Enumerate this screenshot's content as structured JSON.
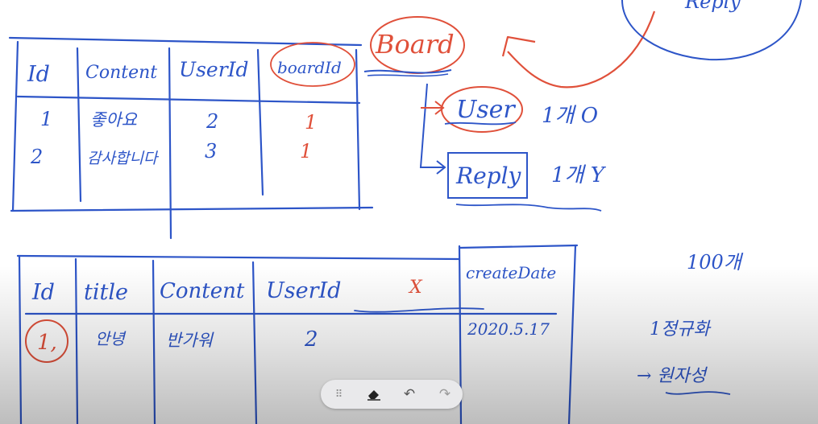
{
  "colors": {
    "ink_blue": "#2d55c8",
    "ink_red": "#e0503a",
    "toolbar_bg": "#e9e9eb"
  },
  "top_cut_label": "Reply",
  "reply_table": {
    "headers": [
      "Id",
      "Content",
      "UserId",
      "boardId"
    ],
    "rows": [
      [
        "1",
        "좋아요",
        "2",
        "1"
      ],
      [
        "2",
        "감사합니다",
        "3",
        "1"
      ]
    ]
  },
  "entity_map": {
    "board": "Board",
    "user": "User",
    "user_rel": "1개 O",
    "reply": "Reply",
    "reply_rel": "1개 Y"
  },
  "board_table": {
    "headers": [
      "Id",
      "title",
      "Content",
      "UserId",
      "X",
      "createDate"
    ],
    "rows": [
      [
        "1,",
        "안녕",
        "반가워",
        "2",
        "",
        "2020.5.17"
      ]
    ]
  },
  "side_notes": {
    "count": "100개",
    "note": "1정규화",
    "arrow_note": "→ 원자성"
  },
  "toolbar": {
    "grip_icon": "grip-icon",
    "eraser_icon": "eraser-icon",
    "undo_icon": "undo-icon",
    "redo_icon": "redo-icon"
  }
}
